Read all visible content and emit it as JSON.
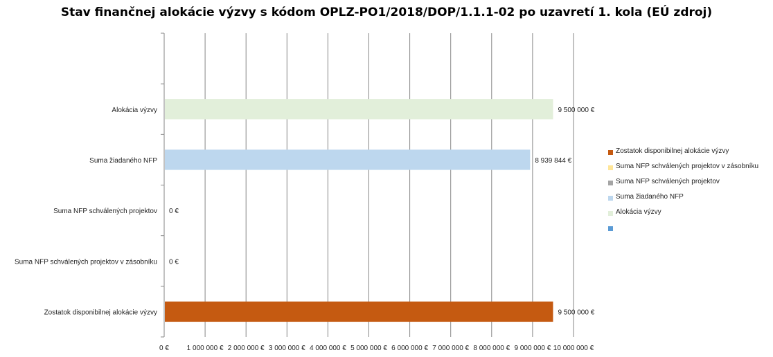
{
  "chart_data": {
    "type": "bar",
    "orientation": "horizontal",
    "title": "Stav finančnej alokácie výzvy s kódom OPLZ-PO1/2018/DOP/1.1.1-02 po uzavretí 1. kola (EÚ zdroj)",
    "xlim": [
      0,
      10000000
    ],
    "x_ticks": [
      0,
      1000000,
      2000000,
      3000000,
      4000000,
      5000000,
      6000000,
      7000000,
      8000000,
      9000000,
      10000000
    ],
    "x_tick_labels": [
      "0 €",
      "1 000 000 €",
      "2 000 000 €",
      "3 000 000 €",
      "4 000 000 €",
      "5 000 000 €",
      "6 000 000 €",
      "7 000 000 €",
      "8 000 000 €",
      "9 000 000 €",
      "10 000 000 €"
    ],
    "grid": "vertical",
    "legend_position": "right",
    "categories": [
      "",
      "Alokácia výzvy",
      "Suma žiadaného NFP",
      "Suma NFP schválených projektov",
      "Suma NFP schválených projektov v zásobníku",
      "Zostatok disponibilnej alokácie výzvy"
    ],
    "values": [
      null,
      9500000,
      8939844,
      0,
      0,
      9500000
    ],
    "value_labels": [
      "",
      "9 500 000 €",
      "8 939 844 €",
      "0 €",
      "0 €",
      "9 500 000 €"
    ],
    "colors": [
      "#5b9bd5",
      "#e2efda",
      "#bdd7ee",
      "#a5a5a5",
      "#ffe699",
      "#c55a11"
    ]
  },
  "legend": {
    "items": [
      {
        "label": "Zostatok disponibilnej alokácie výzvy",
        "color": "#c55a11"
      },
      {
        "label": "Suma NFP schválených projektov v zásobníku",
        "color": "#ffe699"
      },
      {
        "label": "Suma NFP schválených projektov",
        "color": "#a5a5a5"
      },
      {
        "label": "Suma žiadaného NFP",
        "color": "#bdd7ee"
      },
      {
        "label": "Alokácia výzvy",
        "color": "#e2efda"
      },
      {
        "label": "",
        "color": "#5b9bd5"
      }
    ]
  }
}
